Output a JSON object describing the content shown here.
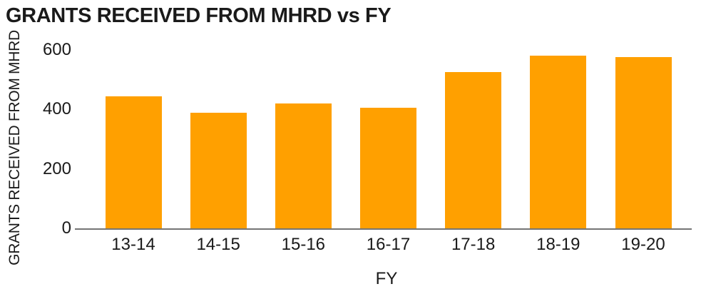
{
  "chart_data": {
    "type": "bar",
    "title": "GRANTS RECEIVED FROM MHRD vs FY",
    "xlabel": "FY",
    "ylabel": "GRANTS RECEIVED FROM MHRD",
    "categories": [
      "13-14",
      "14-15",
      "15-16",
      "16-17",
      "17-18",
      "18-19",
      "19-20"
    ],
    "values": [
      445,
      390,
      420,
      405,
      525,
      580,
      575
    ],
    "ylim": [
      0,
      600
    ],
    "yticks": [
      0,
      200,
      400,
      600
    ],
    "grid": false,
    "legend": "none",
    "bar_color": "#FFA000",
    "axis_line_color": "#757575",
    "text_color": "#1a1a1a"
  }
}
